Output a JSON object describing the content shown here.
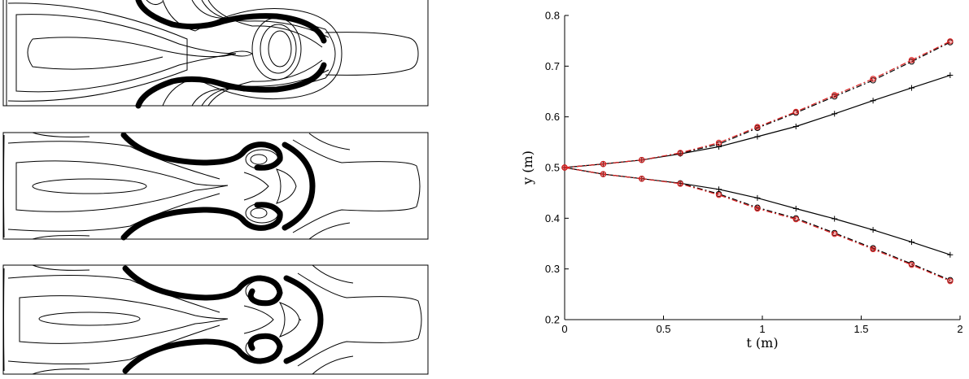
{
  "chart_data": [
    {
      "type": "image",
      "panels": 3
    },
    {
      "type": "line",
      "xlabel": "t (m)",
      "ylabel": "y (m)",
      "xlim": [
        0,
        2
      ],
      "ylim": [
        0.2,
        0.8
      ],
      "xticks": [
        "0",
        "0.5",
        "1",
        "1.5",
        "2"
      ],
      "yticks": [
        "0.2",
        "0.3",
        "0.4",
        "0.5",
        "0.6",
        "0.7",
        "0.8"
      ],
      "x": [
        0,
        0.195,
        0.39,
        0.585,
        0.78,
        0.975,
        1.17,
        1.365,
        1.56,
        1.755,
        1.95
      ],
      "series": [
        {
          "color": "#000000",
          "style": "solid",
          "marker": "plus",
          "values": [
            0.5,
            0.507,
            0.515,
            0.527,
            0.541,
            0.561,
            0.581,
            0.606,
            0.632,
            0.657,
            0.682
          ]
        },
        {
          "color": "#000000",
          "style": "solid",
          "marker": "plus",
          "values": [
            0.5,
            0.487,
            0.478,
            0.469,
            0.457,
            0.44,
            0.419,
            0.399,
            0.377,
            0.353,
            0.328
          ]
        },
        {
          "color": "#000000",
          "style": "dashdot",
          "marker": "circle",
          "values": [
            0.5,
            0.507,
            0.515,
            0.528,
            0.546,
            0.578,
            0.608,
            0.64,
            0.672,
            0.709,
            0.747
          ]
        },
        {
          "color": "#000000",
          "style": "dashdot",
          "marker": "circle",
          "values": [
            0.5,
            0.487,
            0.478,
            0.469,
            0.448,
            0.421,
            0.4,
            0.371,
            0.341,
            0.31,
            0.278
          ]
        },
        {
          "color": "#dd2222",
          "style": "dashdot",
          "marker": "circle",
          "values": [
            0.5,
            0.507,
            0.515,
            0.529,
            0.549,
            0.58,
            0.61,
            0.643,
            0.675,
            0.712,
            0.749
          ]
        },
        {
          "color": "#dd2222",
          "style": "dashdot",
          "marker": "circle",
          "values": [
            0.5,
            0.487,
            0.478,
            0.468,
            0.446,
            0.419,
            0.398,
            0.369,
            0.339,
            0.308,
            0.276
          ]
        }
      ]
    }
  ]
}
